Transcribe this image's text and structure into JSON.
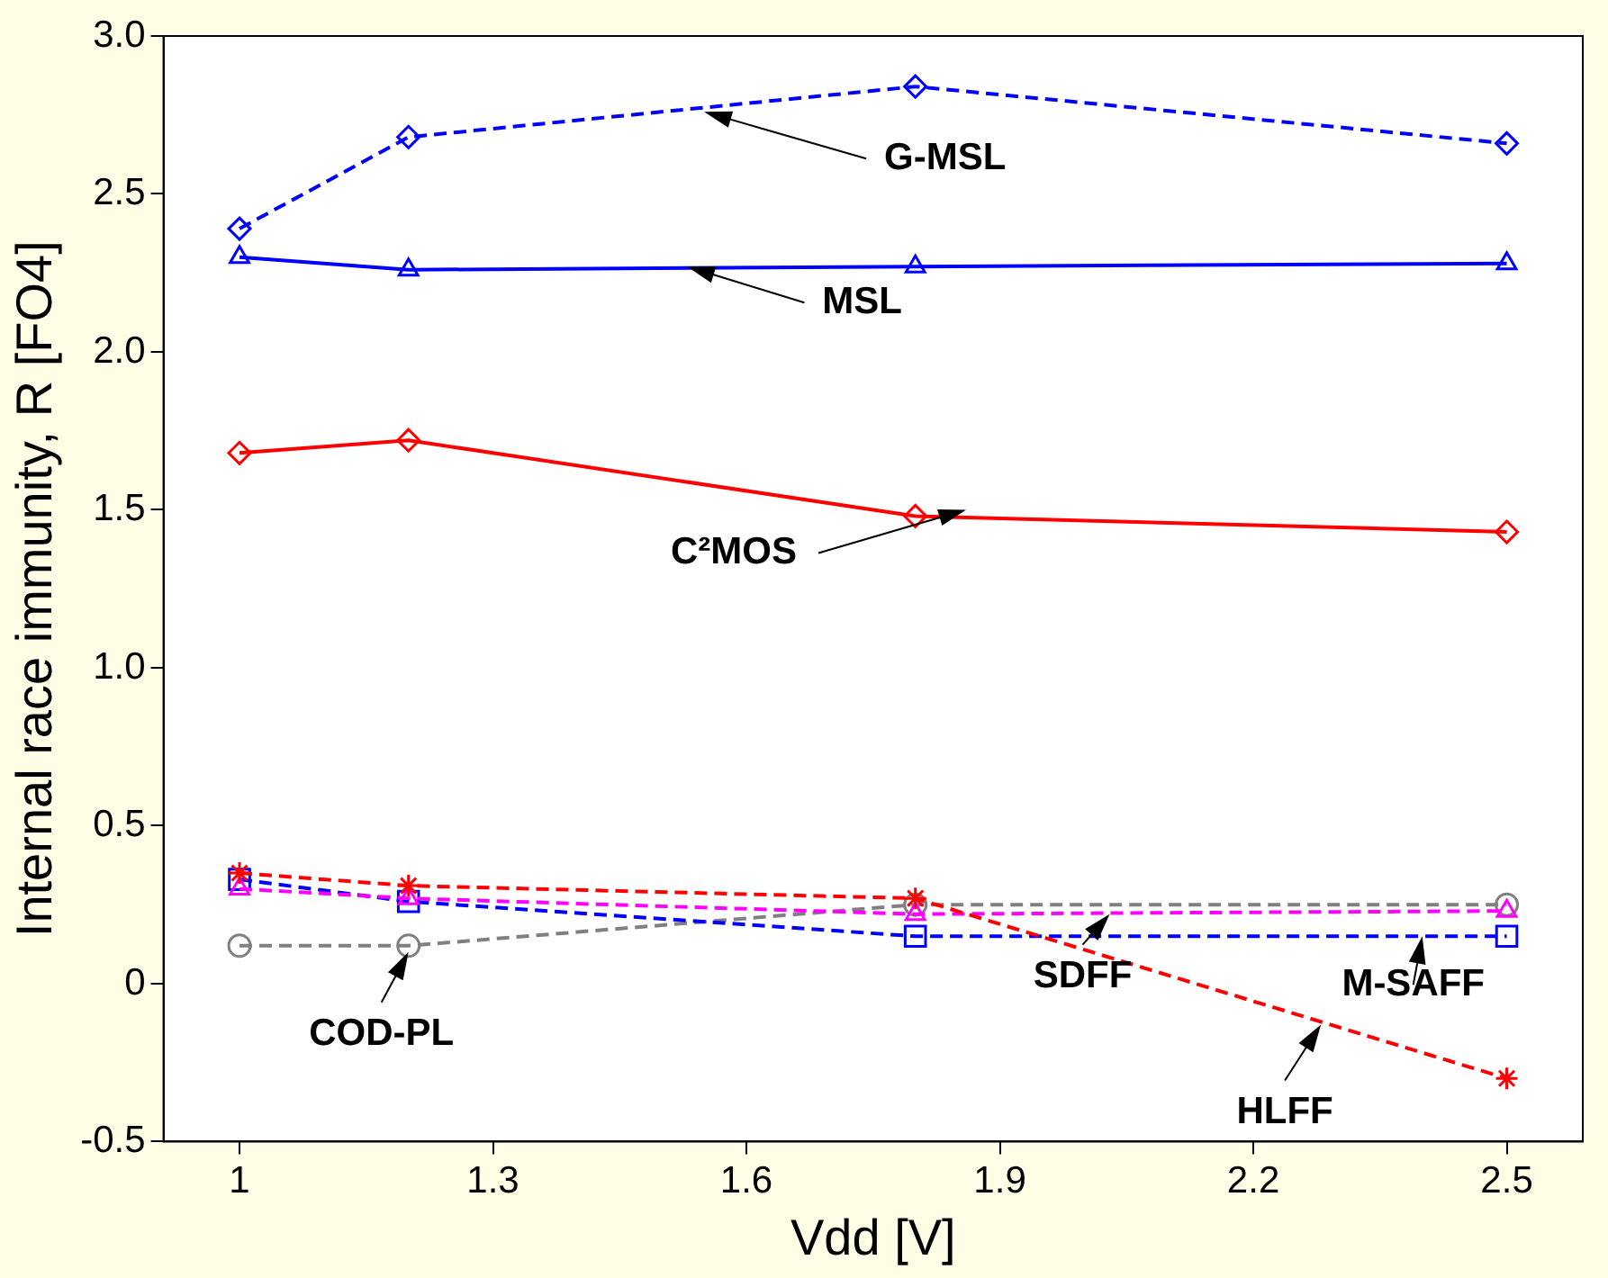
{
  "chart_data": {
    "type": "line",
    "xlabel": "Vdd [V]",
    "ylabel": "Internal race immunity, R [FO4]",
    "xlim": [
      0.91,
      2.59
    ],
    "xticks": [
      1,
      1.3,
      1.6,
      1.9,
      2.2,
      2.5
    ],
    "ylim": [
      -0.5,
      3
    ],
    "yticks": [
      -0.5,
      0,
      0.5,
      {
        "value": 1,
        "label": "1.0"
      },
      1.5,
      {
        "value": 2,
        "label": "2.0"
      },
      2.5,
      {
        "value": 3,
        "label": "3.0"
      }
    ],
    "x": [
      1,
      1.2,
      1.8,
      2.5
    ],
    "grid": false,
    "legend": false,
    "series": [
      {
        "name": "G-MSL",
        "color": "#0000ff",
        "values": [
          2.39,
          2.68,
          2.84,
          2.66
        ],
        "marker": "diamond",
        "line_style": "dashed"
      },
      {
        "name": "MSL",
        "color": "#0000ff",
        "values": [
          2.3,
          2.26,
          2.27,
          2.28
        ],
        "marker": "triangle",
        "line_style": "solid"
      },
      {
        "name": "C²MOS",
        "color": "#ff0000",
        "values": [
          1.68,
          1.72,
          1.48,
          1.43
        ],
        "marker": "diamond",
        "line_style": "solid"
      },
      {
        "name": "HLFF",
        "color": "#ff0000",
        "values": [
          0.35,
          0.31,
          0.27,
          -0.3
        ],
        "marker": "cross",
        "line_style": "dashed"
      },
      {
        "name": "SDFF",
        "color": "#ff00ff",
        "values": [
          0.3,
          0.27,
          0.22,
          0.23
        ],
        "marker": "triangle",
        "line_style": "dashed"
      },
      {
        "name": "M-SAFF",
        "color": "#0000ff",
        "values": [
          0.33,
          0.26,
          0.15,
          0.15
        ],
        "marker": "square",
        "line_style": "dashed"
      },
      {
        "name": "COD-PL",
        "color": "#808080",
        "values": [
          0.12,
          0.12,
          0.25,
          0.25
        ],
        "marker": "circle",
        "line_style": "dashed"
      }
    ]
  }
}
